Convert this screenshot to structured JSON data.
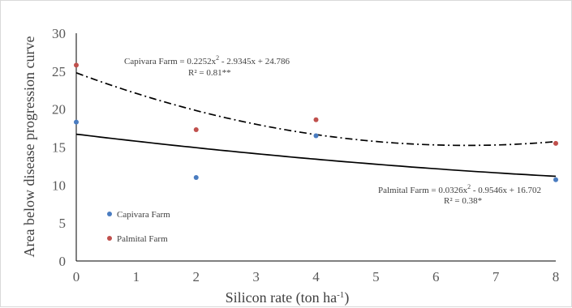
{
  "chart_data": {
    "type": "scatter",
    "title": "",
    "xlabel_main": "Silicon rate (ton ha",
    "xlabel_sup": "-1",
    "xlabel_end": ")",
    "ylabel": "Area below disease progression curve",
    "xlim": [
      0,
      8
    ],
    "ylim": [
      0,
      30
    ],
    "x_ticks": [
      0,
      1,
      2,
      3,
      4,
      5,
      6,
      7,
      8
    ],
    "y_ticks": [
      0,
      5,
      10,
      15,
      20,
      25,
      30
    ],
    "grid": false,
    "legend_position": "bottom-left",
    "series": [
      {
        "name": "Capivara Farm",
        "color": "#4a7cc0",
        "x": [
          0,
          2,
          4,
          8
        ],
        "y": [
          18.3,
          11.0,
          16.5,
          10.7
        ]
      },
      {
        "name": "Palmital Farm",
        "color": "#c0504d",
        "x": [
          0,
          2,
          4,
          8
        ],
        "y": [
          25.8,
          17.3,
          18.6,
          15.5
        ]
      }
    ],
    "trendlines": [
      {
        "style": "dash-dot",
        "color": "#000000",
        "coefficients": [
          0.2252,
          -2.9345,
          24.786
        ]
      },
      {
        "style": "solid",
        "color": "#000000",
        "coefficients": [
          0.0326,
          -0.9546,
          16.702
        ]
      }
    ],
    "annotations": [
      {
        "line1_a": "Capivara Farm = 0.2252x",
        "line1_sup": "2",
        "line1_b": "  - 2.9345x  + 24.786",
        "line2": "R² = 0.81**"
      },
      {
        "line1_a": "Palmital  Farm = 0.0326x",
        "line1_sup": "2",
        "line1_b": "  - 0.9546x  + 16.702",
        "line2": "R² = 0.38*"
      }
    ]
  }
}
